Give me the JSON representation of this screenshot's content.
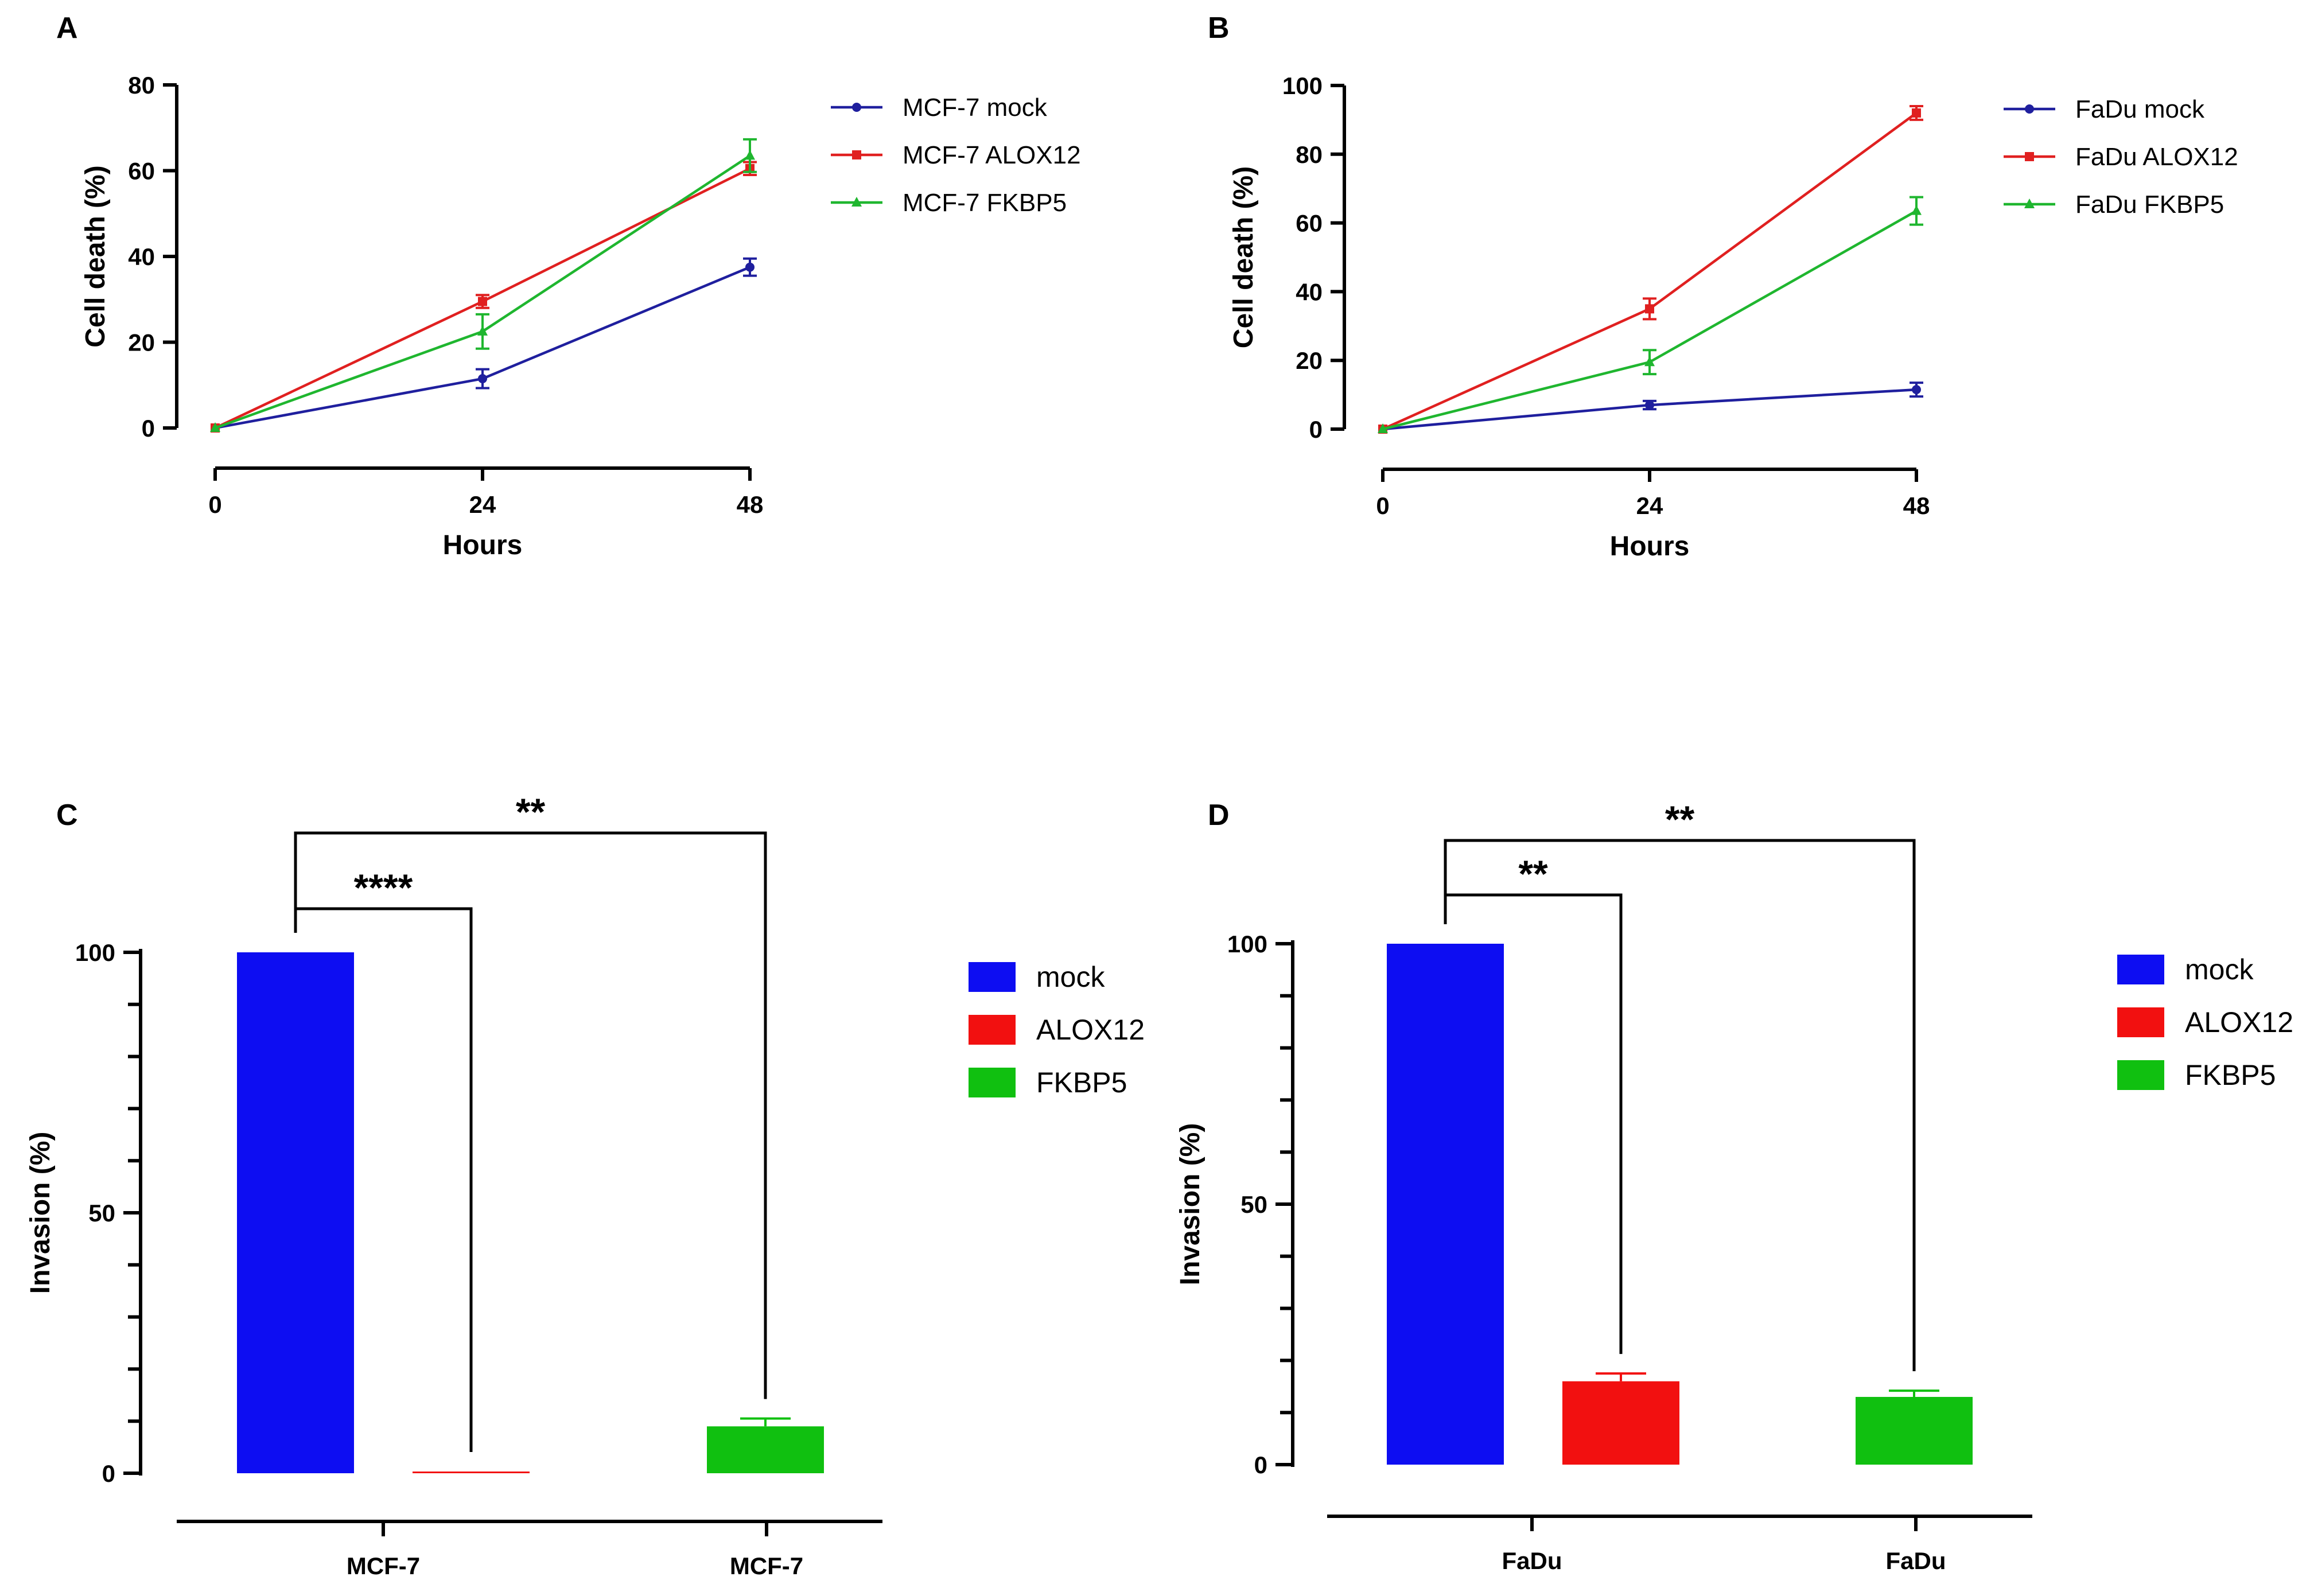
{
  "chart_data": [
    {
      "panel": "A",
      "type": "line",
      "xlabel": "Hours",
      "ylabel": "Cell death (%)",
      "x": [
        0,
        24,
        48
      ],
      "xticks": [
        "0",
        "24",
        "48"
      ],
      "ylim": [
        0,
        80
      ],
      "yticks": [
        "0",
        "20",
        "40",
        "60",
        "80"
      ],
      "series": [
        {
          "name": "MCF-7 mock",
          "color": "#1f1f9e",
          "marker": "circle",
          "values": [
            0,
            11.5,
            37.5
          ],
          "errors": [
            0.5,
            2.2,
            2.0
          ]
        },
        {
          "name": "MCF-7 ALOX12",
          "color": "#e02020",
          "marker": "square",
          "values": [
            0,
            29.5,
            60.5
          ],
          "errors": [
            0.5,
            1.5,
            1.5
          ]
        },
        {
          "name": "MCF-7 FKBP5",
          "color": "#1fb62f",
          "marker": "triangle",
          "values": [
            0,
            22.5,
            63.5
          ],
          "errors": [
            0.5,
            4.0,
            3.8
          ]
        }
      ]
    },
    {
      "panel": "B",
      "type": "line",
      "xlabel": "Hours",
      "ylabel": "Cell death (%)",
      "x": [
        0,
        24,
        48
      ],
      "xticks": [
        "0",
        "24",
        "48"
      ],
      "ylim": [
        0,
        100
      ],
      "yticks": [
        "0",
        "20",
        "40",
        "60",
        "80",
        "100"
      ],
      "series": [
        {
          "name": "FaDu mock",
          "color": "#1f1f9e",
          "marker": "circle",
          "values": [
            0,
            7,
            11.5
          ],
          "errors": [
            0.5,
            1.2,
            2.0
          ]
        },
        {
          "name": "FaDu ALOX12",
          "color": "#e02020",
          "marker": "square",
          "values": [
            0,
            35,
            92
          ],
          "errors": [
            0.5,
            3.0,
            2.0
          ]
        },
        {
          "name": "FaDu FKBP5",
          "color": "#1fb62f",
          "marker": "triangle",
          "values": [
            0,
            19.5,
            63.5
          ],
          "errors": [
            0.5,
            3.5,
            4.0
          ]
        }
      ]
    },
    {
      "panel": "C",
      "type": "bar",
      "ylabel": "Invasion (%)",
      "ylim": [
        0,
        100
      ],
      "yticks": [
        "0",
        "50",
        "100"
      ],
      "categories": [
        "MCF-7",
        "MCF-7"
      ],
      "bars": [
        {
          "name": "mock",
          "color": "#0d0df2",
          "value": 100,
          "error": 0
        },
        {
          "name": "ALOX12",
          "color": "#f21010",
          "value": 0.3,
          "error": 0
        },
        {
          "name": "FKBP5",
          "color": "#10c010",
          "value": 9,
          "error": 1.5
        }
      ],
      "significance": [
        {
          "label": "****",
          "from": "mock",
          "to": "ALOX12"
        },
        {
          "label": "**",
          "from": "mock",
          "to": "FKBP5"
        }
      ],
      "legend": [
        "mock",
        "ALOX12",
        "FKBP5"
      ]
    },
    {
      "panel": "D",
      "type": "bar",
      "ylabel": "Invasion (%)",
      "ylim": [
        0,
        100
      ],
      "yticks": [
        "0",
        "50",
        "100"
      ],
      "categories": [
        "FaDu",
        "FaDu"
      ],
      "bars": [
        {
          "name": "mock",
          "color": "#0d0df2",
          "value": 100,
          "error": 0
        },
        {
          "name": "ALOX12",
          "color": "#f21010",
          "value": 16,
          "error": 1.5
        },
        {
          "name": "FKBP5",
          "color": "#10c010",
          "value": 13,
          "error": 1.2
        }
      ],
      "significance": [
        {
          "label": "**",
          "from": "mock",
          "to": "ALOX12"
        },
        {
          "label": "**",
          "from": "mock",
          "to": "FKBP5"
        }
      ],
      "legend": [
        "mock",
        "ALOX12",
        "FKBP5"
      ]
    }
  ]
}
